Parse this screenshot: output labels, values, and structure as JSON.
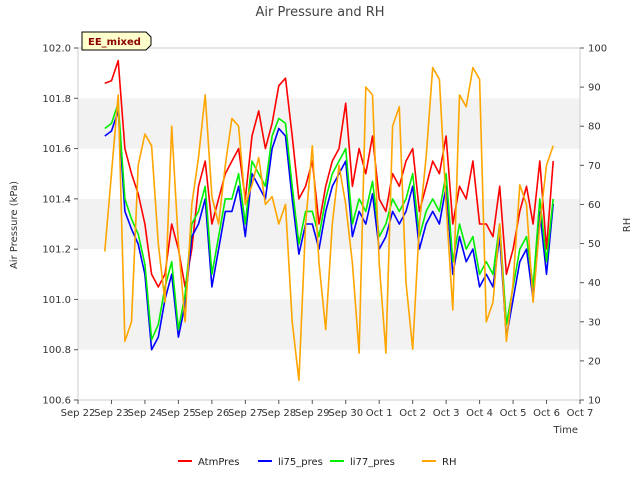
{
  "chart_data": {
    "type": "line",
    "title": "Air Pressure and RH",
    "xlabel": "Time",
    "ylabel": "Air Pressure (kPa)",
    "y2label": "RH",
    "badge": "EE_mixed",
    "x_ticks": [
      "Sep 22",
      "Sep 23",
      "Sep 24",
      "Sep 25",
      "Sep 26",
      "Sep 27",
      "Sep 28",
      "Sep 29",
      "Sep 30",
      "Oct 1",
      "Oct 2",
      "Oct 3",
      "Oct 4",
      "Oct 5",
      "Oct 6",
      "Oct 7"
    ],
    "xlim": [
      0,
      15
    ],
    "ylim": [
      100.6,
      102.0
    ],
    "y_ticks": [
      "100.6",
      "100.8",
      "101.0",
      "101.2",
      "101.4",
      "101.6",
      "101.8",
      "102.0"
    ],
    "y2lim": [
      10,
      100
    ],
    "y2_ticks": [
      "10",
      "20",
      "30",
      "40",
      "50",
      "60",
      "70",
      "80",
      "90",
      "100"
    ],
    "grid": false,
    "bands": true,
    "legend_position": "bottom",
    "x_days": [
      0.8,
      1.0,
      1.2,
      1.4,
      1.6,
      1.8,
      2.0,
      2.2,
      2.4,
      2.6,
      2.8,
      3.0,
      3.2,
      3.4,
      3.6,
      3.8,
      4.0,
      4.2,
      4.4,
      4.6,
      4.8,
      5.0,
      5.2,
      5.4,
      5.6,
      5.8,
      6.0,
      6.2,
      6.4,
      6.6,
      6.8,
      7.0,
      7.2,
      7.4,
      7.6,
      7.8,
      8.0,
      8.2,
      8.4,
      8.6,
      8.8,
      9.0,
      9.2,
      9.4,
      9.6,
      9.8,
      10.0,
      10.2,
      10.4,
      10.6,
      10.8,
      11.0,
      11.2,
      11.4,
      11.6,
      11.8,
      12.0,
      12.2,
      12.4,
      12.6,
      12.8,
      13.0,
      13.2,
      13.4,
      13.6,
      13.8,
      14.0,
      14.2
    ],
    "series": [
      {
        "name": "AtmPres",
        "color": "#ff0000",
        "values": [
          101.86,
          101.87,
          101.95,
          101.6,
          101.5,
          101.42,
          101.3,
          101.1,
          101.05,
          101.1,
          101.3,
          101.2,
          101.05,
          101.2,
          101.45,
          101.55,
          101.3,
          101.4,
          101.5,
          101.55,
          101.6,
          101.4,
          101.65,
          101.75,
          101.6,
          101.7,
          101.85,
          101.88,
          101.65,
          101.4,
          101.45,
          101.55,
          101.3,
          101.45,
          101.55,
          101.6,
          101.78,
          101.45,
          101.6,
          101.5,
          101.65,
          101.4,
          101.35,
          101.5,
          101.45,
          101.55,
          101.6,
          101.35,
          101.45,
          101.55,
          101.5,
          101.65,
          101.3,
          101.45,
          101.4,
          101.55,
          101.3,
          101.3,
          101.25,
          101.45,
          101.1,
          101.2,
          101.35,
          101.45,
          101.3,
          101.55,
          101.2,
          101.55
        ]
      },
      {
        "name": "li75_pres",
        "color": "#0000ff",
        "values": [
          101.65,
          101.67,
          101.75,
          101.35,
          101.28,
          101.22,
          101.1,
          100.8,
          100.85,
          101.0,
          101.1,
          100.85,
          100.98,
          101.25,
          101.3,
          101.4,
          101.05,
          101.2,
          101.35,
          101.35,
          101.45,
          101.25,
          101.5,
          101.45,
          101.4,
          101.6,
          101.68,
          101.65,
          101.4,
          101.18,
          101.3,
          101.3,
          101.2,
          101.35,
          101.45,
          101.5,
          101.55,
          101.25,
          101.35,
          101.3,
          101.42,
          101.2,
          101.25,
          101.35,
          101.3,
          101.35,
          101.45,
          101.2,
          101.3,
          101.35,
          101.3,
          101.45,
          101.1,
          101.25,
          101.15,
          101.2,
          101.05,
          101.1,
          101.05,
          101.25,
          100.85,
          101.0,
          101.15,
          101.2,
          101.0,
          101.35,
          101.1,
          101.38
        ]
      },
      {
        "name": "li77_pres",
        "color": "#00ee00",
        "values": [
          101.68,
          101.7,
          101.78,
          101.4,
          101.32,
          101.26,
          101.14,
          100.84,
          100.9,
          101.05,
          101.15,
          100.88,
          101.02,
          101.3,
          101.35,
          101.45,
          101.1,
          101.25,
          101.4,
          101.4,
          101.5,
          101.3,
          101.55,
          101.5,
          101.45,
          101.65,
          101.72,
          101.7,
          101.45,
          101.22,
          101.35,
          101.35,
          101.25,
          101.4,
          101.5,
          101.55,
          101.6,
          101.3,
          101.4,
          101.35,
          101.47,
          101.25,
          101.3,
          101.4,
          101.35,
          101.4,
          101.5,
          101.25,
          101.35,
          101.4,
          101.35,
          101.5,
          101.15,
          101.3,
          101.2,
          101.25,
          101.1,
          101.15,
          101.1,
          101.3,
          100.9,
          101.05,
          101.2,
          101.25,
          101.05,
          101.4,
          101.15,
          101.4
        ]
      },
      {
        "name": "RH",
        "color": "#ffa500",
        "axis": "right",
        "values": [
          48,
          68,
          88,
          25,
          30,
          70,
          78,
          75,
          50,
          35,
          80,
          50,
          30,
          60,
          72,
          88,
          62,
          55,
          70,
          82,
          80,
          60,
          65,
          72,
          60,
          62,
          55,
          60,
          30,
          15,
          55,
          75,
          45,
          28,
          55,
          70,
          60,
          45,
          22,
          90,
          88,
          45,
          22,
          80,
          85,
          40,
          23,
          55,
          72,
          95,
          92,
          60,
          33,
          88,
          85,
          95,
          92,
          30,
          35,
          55,
          25,
          40,
          65,
          60,
          35,
          55,
          70,
          75
        ]
      }
    ]
  }
}
